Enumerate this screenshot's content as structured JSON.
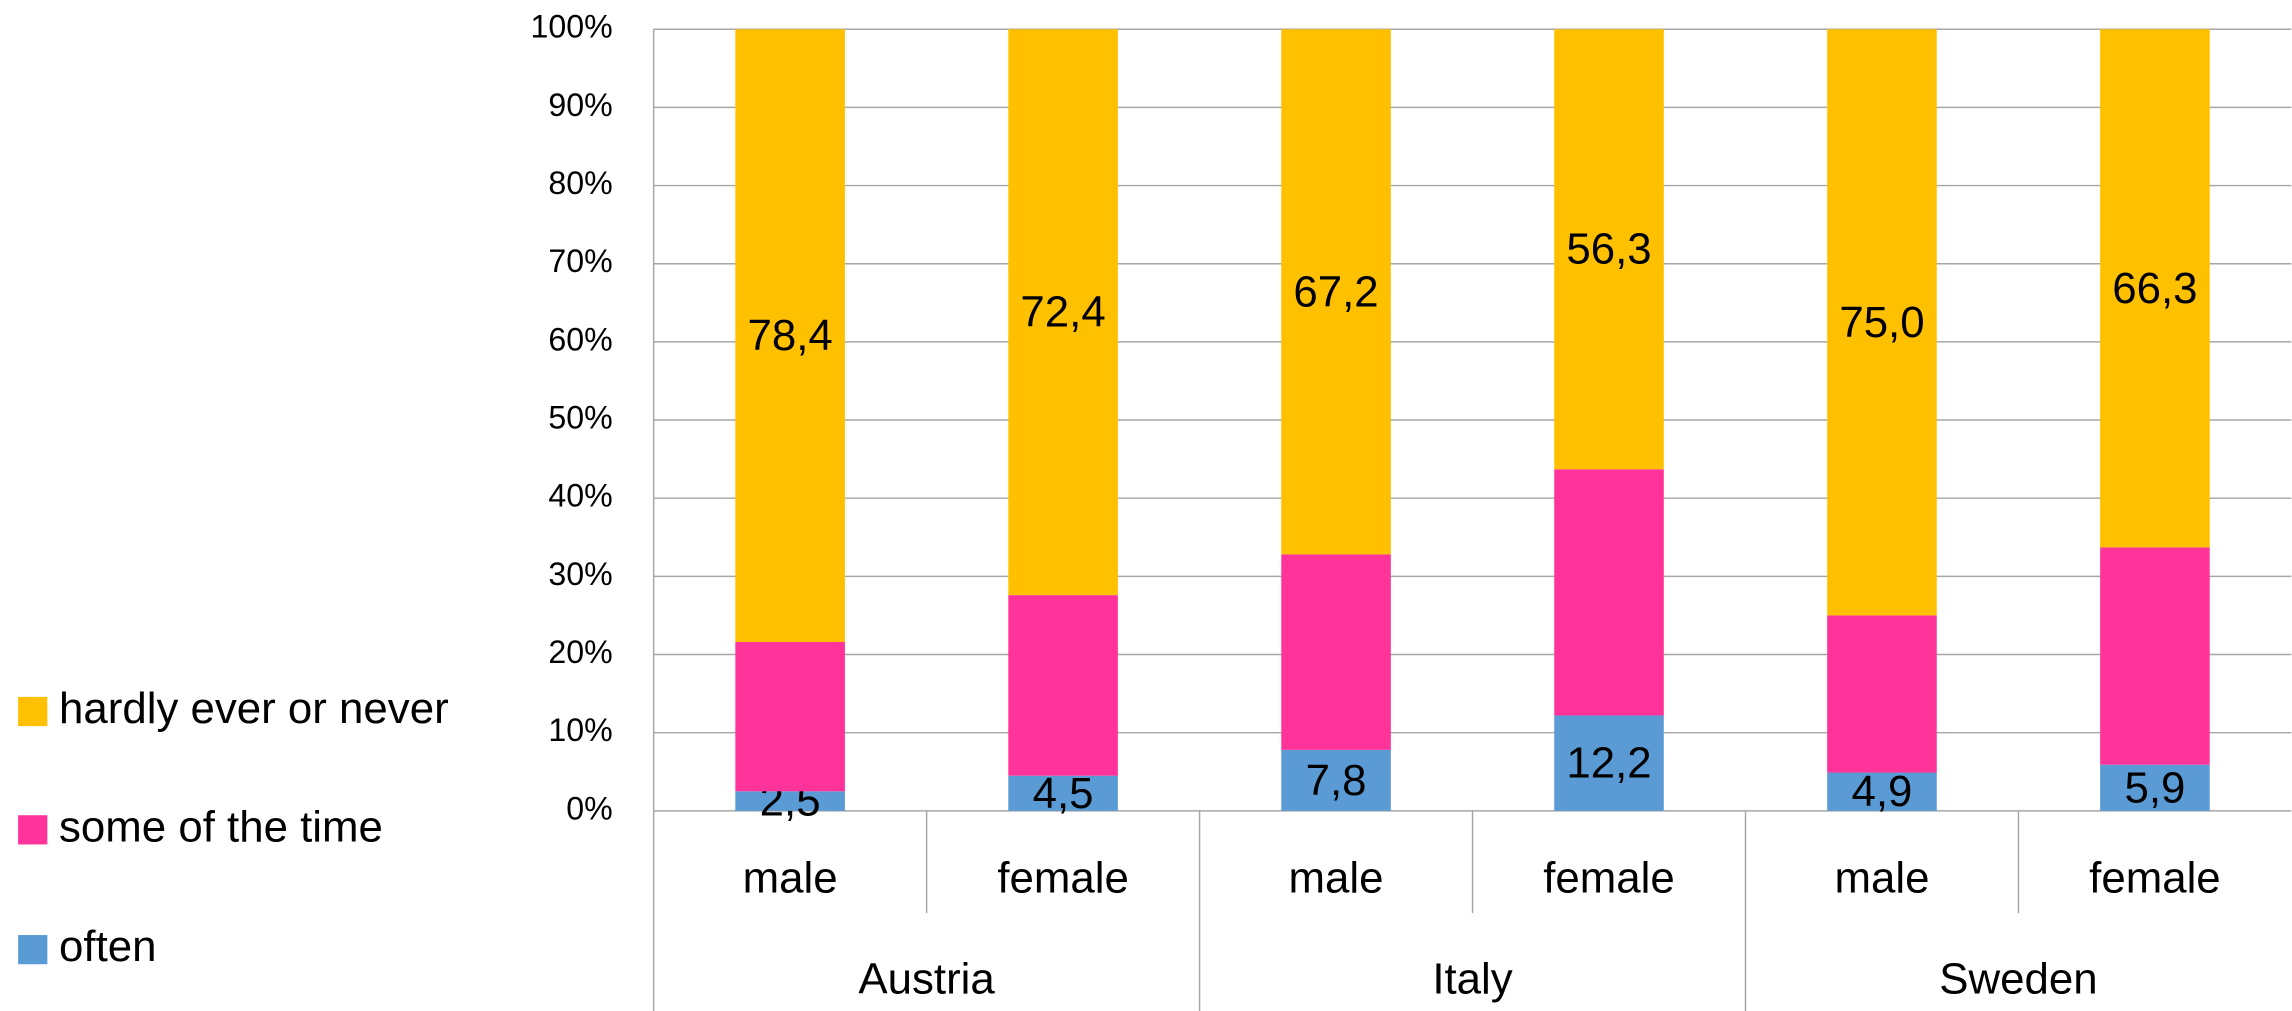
{
  "chart_data": {
    "type": "stacked_bar",
    "categories": [
      "male",
      "female",
      "male",
      "female",
      "male",
      "female"
    ],
    "groups": [
      "Austria",
      "Italy",
      "Sweden"
    ],
    "series": [
      {
        "name": "often",
        "color": "#5b9bd5",
        "values": [
          2.5,
          4.5,
          7.8,
          12.2,
          4.9,
          5.9
        ],
        "value_labels": [
          "2,5",
          "4,5",
          "7,8",
          "12,2",
          "4,9",
          "5,9"
        ]
      },
      {
        "name": "some of the time",
        "color": "#ff3399",
        "values": [
          19.1,
          23.1,
          25.0,
          31.5,
          20.1,
          27.8
        ]
      },
      {
        "name": "hardly ever or never",
        "color": "#ffc000",
        "values": [
          78.4,
          72.4,
          67.2,
          56.3,
          75.0,
          66.3
        ],
        "value_labels": [
          "78,4",
          "72,4",
          "67,2",
          "56,3",
          "75,0",
          "66,3"
        ]
      }
    ],
    "ylim": [
      0,
      100
    ],
    "yticks": [
      {
        "value": 0,
        "label": "0%"
      },
      {
        "value": 10,
        "label": "10%"
      },
      {
        "value": 20,
        "label": "20%"
      },
      {
        "value": 30,
        "label": "30%"
      },
      {
        "value": 40,
        "label": "40%"
      },
      {
        "value": 50,
        "label": "50%"
      },
      {
        "value": 60,
        "label": "60%"
      },
      {
        "value": 70,
        "label": "70%"
      },
      {
        "value": 80,
        "label": "80%"
      },
      {
        "value": 90,
        "label": "90%"
      },
      {
        "value": 100,
        "label": "100%"
      }
    ],
    "grid": true,
    "legend": "left"
  }
}
